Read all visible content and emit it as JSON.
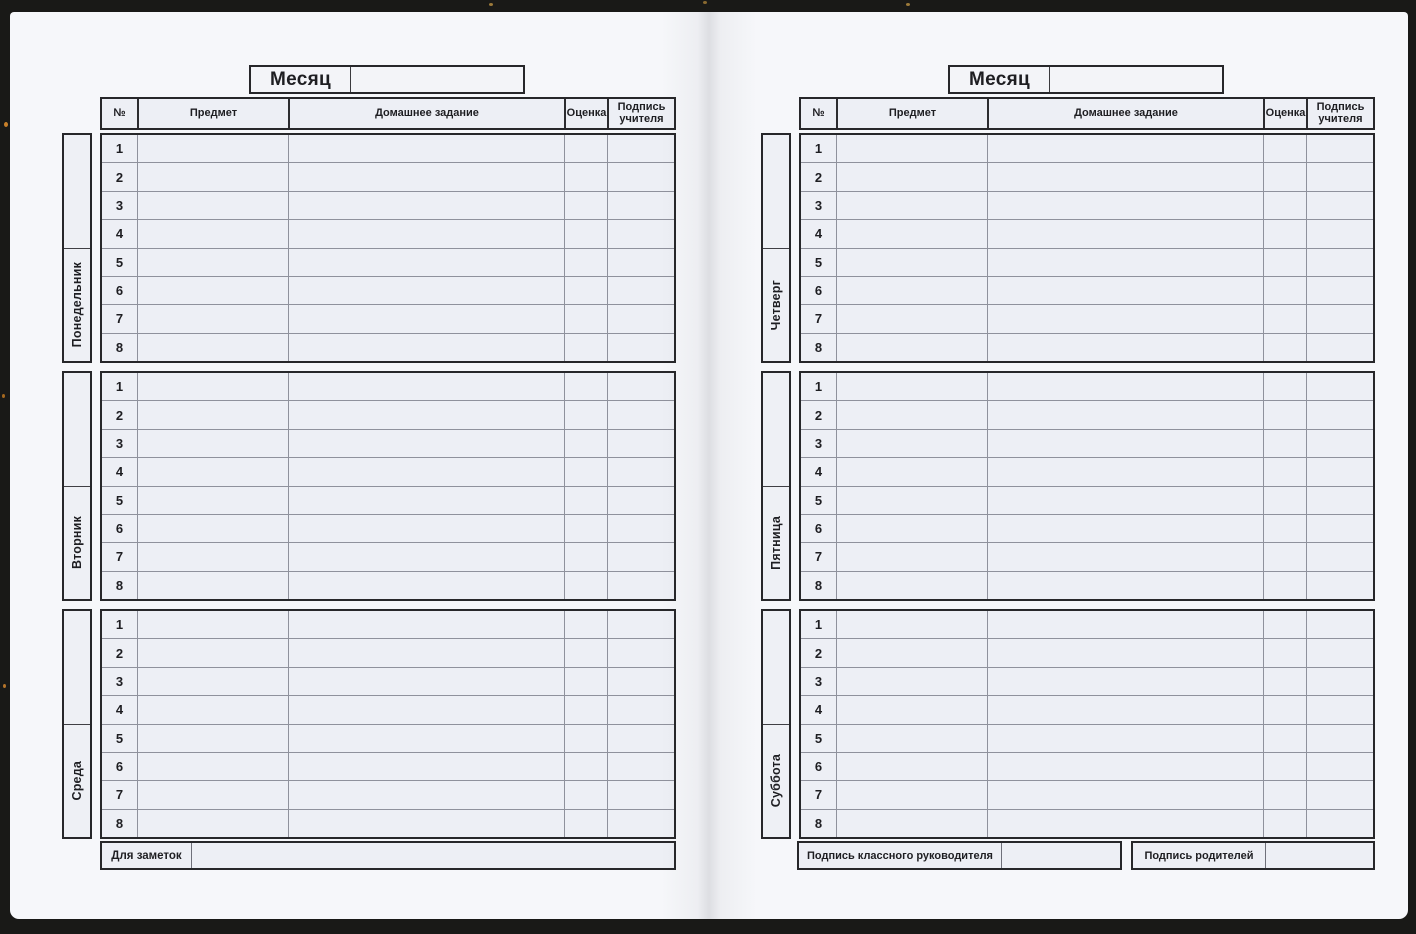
{
  "diary": {
    "month": {
      "label": "Месяц",
      "value": ""
    },
    "table_columns": {
      "number": "№",
      "subject": "Предмет",
      "homework": "Домашнее задание",
      "grade": "Оценка",
      "teacher_signature": "Подпись учителя"
    },
    "lesson_numbers": [
      "1",
      "2",
      "3",
      "4",
      "5",
      "6",
      "7",
      "8"
    ],
    "pages": [
      {
        "days": [
          "Понедельник",
          "Вторник",
          "Среда"
        ],
        "notes": {
          "label": "Для заметок",
          "value": ""
        }
      },
      {
        "days": [
          "Четверг",
          "Пятница",
          "Суббота"
        ],
        "signatures": {
          "class_teacher": {
            "label": "Подпись классного руководителя",
            "value": ""
          },
          "parents": {
            "label": "Подпись родителей",
            "value": ""
          }
        }
      }
    ],
    "colors": {
      "cover": "#191917",
      "paper": "#f6f7fa",
      "cell_fill": "#edeff5",
      "border_dark": "#27272a",
      "grid_line": "#8f919c",
      "accent_speck": "#c8802a"
    }
  }
}
